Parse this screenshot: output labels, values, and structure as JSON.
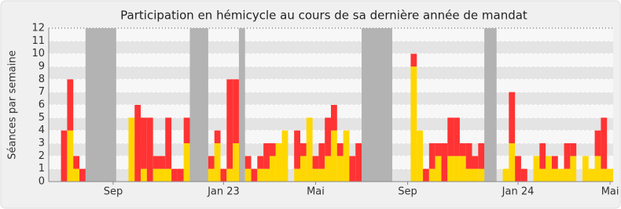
{
  "chart_data": {
    "type": "stacked-bar",
    "title": "Participation en hémicycle au cours de sa dernière année de mandat",
    "y_label": "Séances par semaine",
    "categories": [
      null,
      null,
      null,
      null,
      null,
      null,
      null,
      null,
      null,
      null,
      "Sep",
      null,
      null,
      null,
      null,
      null,
      null,
      null,
      null,
      null,
      null,
      null,
      null,
      null,
      null,
      null,
      null,
      null,
      "Jan 23",
      null,
      null,
      null,
      null,
      null,
      null,
      null,
      null,
      null,
      null,
      null,
      null,
      null,
      null,
      "Mai",
      null,
      null,
      null,
      null,
      null,
      null,
      null,
      null,
      null,
      null,
      null,
      null,
      null,
      null,
      "Sep",
      null,
      null,
      null,
      null,
      null,
      null,
      null,
      null,
      null,
      null,
      null,
      null,
      null,
      null,
      null,
      null,
      null,
      "Jan 24",
      null,
      null,
      null,
      null,
      null,
      null,
      null,
      null,
      null,
      null,
      null,
      null,
      null,
      null,
      "Mai"
    ],
    "series": [
      {
        "color": "#ffd700",
        "values": [
          0,
          0,
          0,
          4,
          1,
          0,
          0,
          0,
          0,
          0,
          0,
          0,
          0,
          5,
          0,
          1,
          0,
          1,
          1,
          1,
          0,
          0,
          3,
          0,
          0,
          0,
          1,
          3,
          0,
          1,
          3,
          0,
          1,
          0,
          1,
          1,
          2,
          3,
          4,
          0,
          1,
          2,
          5,
          1,
          1,
          2,
          4,
          2,
          4,
          0,
          0,
          0,
          0,
          0,
          0,
          0,
          0,
          0,
          0,
          9,
          4,
          0,
          1,
          2,
          0,
          2,
          2,
          2,
          1,
          1,
          1,
          0,
          0,
          0,
          1,
          3,
          0,
          0,
          0,
          2,
          1,
          2,
          1,
          1,
          1,
          2,
          0,
          2,
          1,
          2,
          1,
          1
        ]
      },
      {
        "color": "#ff3333",
        "values": [
          0,
          0,
          4,
          4,
          1,
          1,
          0,
          0,
          0,
          0,
          0,
          0,
          0,
          0,
          6,
          4,
          5,
          1,
          1,
          4,
          1,
          1,
          2,
          0,
          0,
          0,
          1,
          1,
          1,
          7,
          5,
          0,
          1,
          1,
          1,
          2,
          1,
          0,
          0,
          0,
          3,
          1,
          0,
          1,
          2,
          3,
          2,
          1,
          0,
          2,
          3,
          0,
          0,
          0,
          0,
          0,
          0,
          0,
          0,
          1,
          0,
          1,
          2,
          1,
          3,
          3,
          3,
          1,
          2,
          1,
          2,
          0,
          0,
          0,
          0,
          4,
          2,
          1,
          0,
          0,
          2,
          0,
          1,
          0,
          2,
          1,
          0,
          0,
          0,
          2,
          4,
          0
        ]
      }
    ],
    "shaded_weeks": [
      [
        5.5,
        10.5
      ],
      [
        22.5,
        25.5
      ],
      [
        30.5,
        31.5
      ],
      [
        50.5,
        55.5
      ],
      [
        70.5,
        72.5
      ]
    ],
    "shade_color": "#b3b3b3",
    "ylim": [
      0,
      12
    ],
    "yticks": [
      0,
      1,
      2,
      3,
      4,
      5,
      6,
      7,
      8,
      9,
      10,
      11,
      12
    ],
    "grid": true
  }
}
